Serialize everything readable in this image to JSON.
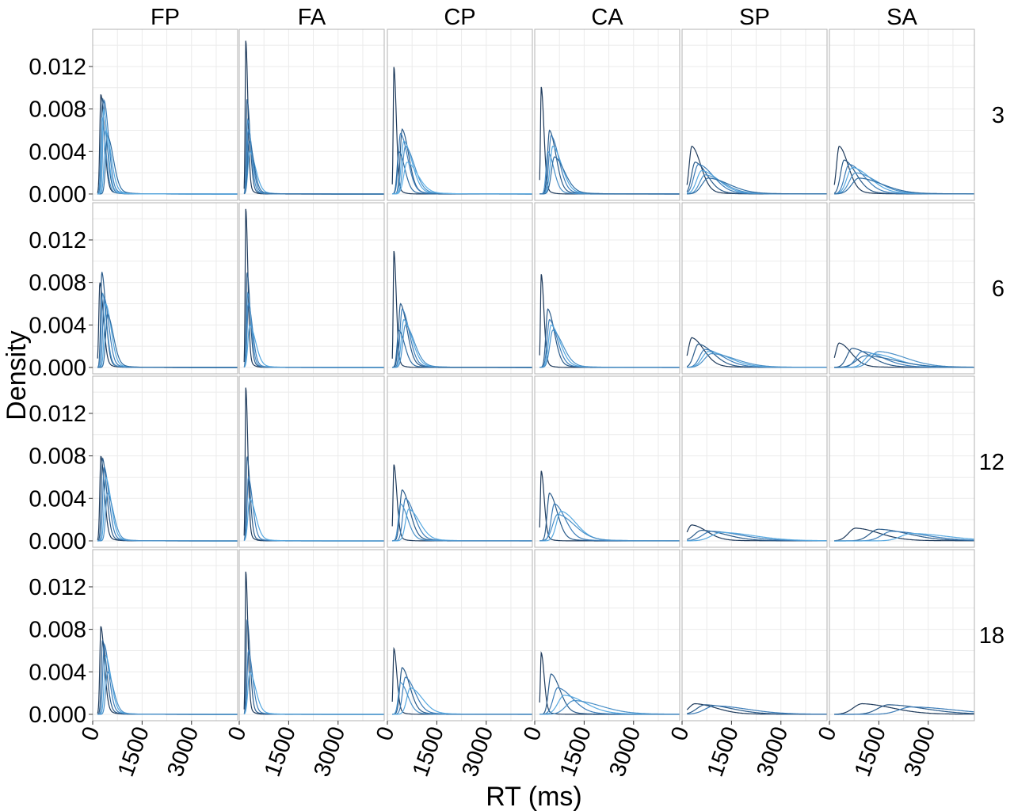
{
  "chart_data": {
    "type": "line",
    "xlabel": "RT (ms)",
    "ylabel": "Density",
    "xlim": [
      0,
      4400
    ],
    "ylim": [
      -0.0006,
      0.0155
    ],
    "x_ticks": [
      {
        "value": 0,
        "label": "0"
      },
      {
        "value": 1500,
        "label": "1500"
      },
      {
        "value": 3000,
        "label": "3000"
      }
    ],
    "y_ticks": [
      {
        "value": 0.0,
        "label": "0.000"
      },
      {
        "value": 0.004,
        "label": "0.004"
      },
      {
        "value": 0.008,
        "label": "0.008"
      },
      {
        "value": 0.012,
        "label": "0.012"
      }
    ],
    "columns": [
      "FP",
      "FA",
      "CP",
      "CA",
      "SP",
      "SA"
    ],
    "rows": [
      "3",
      "6",
      "12",
      "18"
    ],
    "grid": true,
    "colors": {
      "background": "#ffffff",
      "panel_border": "#b3b3b3",
      "grid": "#ebebeb",
      "curve_dark": "#1f3b5c",
      "curve_light": "#56a8e0"
    },
    "panels": [
      {
        "col": "FP",
        "row": "3",
        "curves": [
          {
            "peak_x": 250,
            "peak_y": 0.0094,
            "sd": 60
          },
          {
            "peak_x": 300,
            "peak_y": 0.009,
            "sd": 70
          },
          {
            "peak_x": 350,
            "peak_y": 0.0088,
            "sd": 75
          },
          {
            "peak_x": 400,
            "peak_y": 0.006,
            "sd": 90
          },
          {
            "peak_x": 280,
            "peak_y": 0.0072,
            "sd": 65
          },
          {
            "peak_x": 450,
            "peak_y": 0.0055,
            "sd": 100
          },
          {
            "peak_x": 330,
            "peak_y": 0.008,
            "sd": 70
          }
        ]
      },
      {
        "col": "FA",
        "row": "3",
        "curves": [
          {
            "peak_x": 200,
            "peak_y": 0.0145,
            "sd": 35
          },
          {
            "peak_x": 240,
            "peak_y": 0.009,
            "sd": 50
          },
          {
            "peak_x": 280,
            "peak_y": 0.006,
            "sd": 70
          },
          {
            "peak_x": 320,
            "peak_y": 0.004,
            "sd": 100
          },
          {
            "peak_x": 260,
            "peak_y": 0.007,
            "sd": 60
          },
          {
            "peak_x": 300,
            "peak_y": 0.005,
            "sd": 80
          }
        ]
      },
      {
        "col": "CP",
        "row": "3",
        "curves": [
          {
            "peak_x": 200,
            "peak_y": 0.012,
            "sd": 40
          },
          {
            "peak_x": 450,
            "peak_y": 0.0061,
            "sd": 110
          },
          {
            "peak_x": 400,
            "peak_y": 0.0057,
            "sd": 120
          },
          {
            "peak_x": 500,
            "peak_y": 0.005,
            "sd": 140
          },
          {
            "peak_x": 550,
            "peak_y": 0.0045,
            "sd": 150
          },
          {
            "peak_x": 350,
            "peak_y": 0.004,
            "sd": 100
          },
          {
            "peak_x": 600,
            "peak_y": 0.003,
            "sd": 180
          }
        ]
      },
      {
        "col": "CA",
        "row": "3",
        "curves": [
          {
            "peak_x": 200,
            "peak_y": 0.0101,
            "sd": 45
          },
          {
            "peak_x": 450,
            "peak_y": 0.006,
            "sd": 110
          },
          {
            "peak_x": 500,
            "peak_y": 0.0055,
            "sd": 130
          },
          {
            "peak_x": 550,
            "peak_y": 0.0045,
            "sd": 150
          },
          {
            "peak_x": 400,
            "peak_y": 0.004,
            "sd": 100
          },
          {
            "peak_x": 600,
            "peak_y": 0.0035,
            "sd": 170
          }
        ]
      },
      {
        "col": "SP",
        "row": "3",
        "curves": [
          {
            "peak_x": 300,
            "peak_y": 0.0045,
            "sd": 150
          },
          {
            "peak_x": 400,
            "peak_y": 0.003,
            "sd": 200
          },
          {
            "peak_x": 500,
            "peak_y": 0.0028,
            "sd": 250
          },
          {
            "peak_x": 600,
            "peak_y": 0.0022,
            "sd": 280
          },
          {
            "peak_x": 700,
            "peak_y": 0.0018,
            "sd": 300
          },
          {
            "peak_x": 800,
            "peak_y": 0.0015,
            "sd": 350
          }
        ]
      },
      {
        "col": "SA",
        "row": "3",
        "curves": [
          {
            "peak_x": 300,
            "peak_y": 0.0045,
            "sd": 150
          },
          {
            "peak_x": 450,
            "peak_y": 0.0032,
            "sd": 200
          },
          {
            "peak_x": 600,
            "peak_y": 0.0028,
            "sd": 250
          },
          {
            "peak_x": 700,
            "peak_y": 0.0025,
            "sd": 300
          },
          {
            "peak_x": 800,
            "peak_y": 0.002,
            "sd": 350
          },
          {
            "peak_x": 900,
            "peak_y": 0.0015,
            "sd": 400
          }
        ]
      },
      {
        "col": "FP",
        "row": "6",
        "curves": [
          {
            "peak_x": 220,
            "peak_y": 0.008,
            "sd": 60
          },
          {
            "peak_x": 280,
            "peak_y": 0.009,
            "sd": 65
          },
          {
            "peak_x": 350,
            "peak_y": 0.0066,
            "sd": 80
          },
          {
            "peak_x": 400,
            "peak_y": 0.006,
            "sd": 90
          },
          {
            "peak_x": 300,
            "peak_y": 0.007,
            "sd": 70
          },
          {
            "peak_x": 450,
            "peak_y": 0.005,
            "sd": 100
          }
        ]
      },
      {
        "col": "FA",
        "row": "6",
        "curves": [
          {
            "peak_x": 200,
            "peak_y": 0.015,
            "sd": 35
          },
          {
            "peak_x": 240,
            "peak_y": 0.009,
            "sd": 50
          },
          {
            "peak_x": 280,
            "peak_y": 0.006,
            "sd": 70
          },
          {
            "peak_x": 320,
            "peak_y": 0.004,
            "sd": 100
          },
          {
            "peak_x": 260,
            "peak_y": 0.007,
            "sd": 60
          }
        ]
      },
      {
        "col": "CP",
        "row": "6",
        "curves": [
          {
            "peak_x": 200,
            "peak_y": 0.011,
            "sd": 40
          },
          {
            "peak_x": 400,
            "peak_y": 0.006,
            "sd": 110
          },
          {
            "peak_x": 450,
            "peak_y": 0.0055,
            "sd": 120
          },
          {
            "peak_x": 500,
            "peak_y": 0.0045,
            "sd": 140
          },
          {
            "peak_x": 550,
            "peak_y": 0.004,
            "sd": 150
          },
          {
            "peak_x": 350,
            "peak_y": 0.0035,
            "sd": 100
          }
        ]
      },
      {
        "col": "CA",
        "row": "6",
        "curves": [
          {
            "peak_x": 200,
            "peak_y": 0.0088,
            "sd": 45
          },
          {
            "peak_x": 400,
            "peak_y": 0.0055,
            "sd": 110
          },
          {
            "peak_x": 450,
            "peak_y": 0.0045,
            "sd": 130
          },
          {
            "peak_x": 500,
            "peak_y": 0.004,
            "sd": 150
          },
          {
            "peak_x": 550,
            "peak_y": 0.0035,
            "sd": 170
          }
        ]
      },
      {
        "col": "SP",
        "row": "6",
        "curves": [
          {
            "peak_x": 300,
            "peak_y": 0.0028,
            "sd": 200
          },
          {
            "peak_x": 500,
            "peak_y": 0.0022,
            "sd": 250
          },
          {
            "peak_x": 700,
            "peak_y": 0.0017,
            "sd": 300
          },
          {
            "peak_x": 800,
            "peak_y": 0.0015,
            "sd": 350
          },
          {
            "peak_x": 900,
            "peak_y": 0.0013,
            "sd": 400
          }
        ]
      },
      {
        "col": "SA",
        "row": "6",
        "curves": [
          {
            "peak_x": 300,
            "peak_y": 0.0023,
            "sd": 200
          },
          {
            "peak_x": 700,
            "peak_y": 0.0018,
            "sd": 300
          },
          {
            "peak_x": 1000,
            "peak_y": 0.0015,
            "sd": 350
          },
          {
            "peak_x": 1300,
            "peak_y": 0.0013,
            "sd": 400
          },
          {
            "peak_x": 1500,
            "peak_y": 0.0015,
            "sd": 450
          },
          {
            "peak_x": 1100,
            "peak_y": 0.0011,
            "sd": 500
          }
        ]
      },
      {
        "col": "FP",
        "row": "12",
        "curves": [
          {
            "peak_x": 250,
            "peak_y": 0.008,
            "sd": 60
          },
          {
            "peak_x": 300,
            "peak_y": 0.0078,
            "sd": 70
          },
          {
            "peak_x": 350,
            "peak_y": 0.007,
            "sd": 80
          },
          {
            "peak_x": 400,
            "peak_y": 0.006,
            "sd": 90
          },
          {
            "peak_x": 450,
            "peak_y": 0.0045,
            "sd": 100
          }
        ]
      },
      {
        "col": "FA",
        "row": "12",
        "curves": [
          {
            "peak_x": 200,
            "peak_y": 0.0145,
            "sd": 35
          },
          {
            "peak_x": 240,
            "peak_y": 0.008,
            "sd": 50
          },
          {
            "peak_x": 280,
            "peak_y": 0.006,
            "sd": 70
          },
          {
            "peak_x": 320,
            "peak_y": 0.004,
            "sd": 100
          }
        ]
      },
      {
        "col": "CP",
        "row": "12",
        "curves": [
          {
            "peak_x": 200,
            "peak_y": 0.0072,
            "sd": 50
          },
          {
            "peak_x": 450,
            "peak_y": 0.0048,
            "sd": 130
          },
          {
            "peak_x": 550,
            "peak_y": 0.004,
            "sd": 150
          },
          {
            "peak_x": 650,
            "peak_y": 0.003,
            "sd": 180
          },
          {
            "peak_x": 400,
            "peak_y": 0.0035,
            "sd": 120
          }
        ]
      },
      {
        "col": "CA",
        "row": "12",
        "curves": [
          {
            "peak_x": 200,
            "peak_y": 0.0066,
            "sd": 50
          },
          {
            "peak_x": 450,
            "peak_y": 0.0045,
            "sd": 130
          },
          {
            "peak_x": 600,
            "peak_y": 0.0035,
            "sd": 180
          },
          {
            "peak_x": 800,
            "peak_y": 0.0028,
            "sd": 250
          },
          {
            "peak_x": 700,
            "peak_y": 0.0025,
            "sd": 280
          }
        ]
      },
      {
        "col": "SP",
        "row": "12",
        "curves": [
          {
            "peak_x": 300,
            "peak_y": 0.0015,
            "sd": 250
          },
          {
            "peak_x": 600,
            "peak_y": 0.001,
            "sd": 400
          },
          {
            "peak_x": 900,
            "peak_y": 0.0009,
            "sd": 500
          },
          {
            "peak_x": 1200,
            "peak_y": 0.0008,
            "sd": 550
          }
        ]
      },
      {
        "col": "SA",
        "row": "12",
        "curves": [
          {
            "peak_x": 800,
            "peak_y": 0.0012,
            "sd": 400
          },
          {
            "peak_x": 1500,
            "peak_y": 0.0011,
            "sd": 500
          },
          {
            "peak_x": 1900,
            "peak_y": 0.0009,
            "sd": 550
          },
          {
            "peak_x": 2500,
            "peak_y": 0.0007,
            "sd": 600
          }
        ]
      },
      {
        "col": "FP",
        "row": "18",
        "curves": [
          {
            "peak_x": 250,
            "peak_y": 0.0083,
            "sd": 60
          },
          {
            "peak_x": 300,
            "peak_y": 0.007,
            "sd": 70
          },
          {
            "peak_x": 350,
            "peak_y": 0.0066,
            "sd": 80
          },
          {
            "peak_x": 400,
            "peak_y": 0.0055,
            "sd": 90
          },
          {
            "peak_x": 450,
            "peak_y": 0.004,
            "sd": 100
          }
        ]
      },
      {
        "col": "FA",
        "row": "18",
        "curves": [
          {
            "peak_x": 200,
            "peak_y": 0.0135,
            "sd": 35
          },
          {
            "peak_x": 240,
            "peak_y": 0.009,
            "sd": 50
          },
          {
            "peak_x": 280,
            "peak_y": 0.006,
            "sd": 70
          },
          {
            "peak_x": 320,
            "peak_y": 0.004,
            "sd": 100
          }
        ]
      },
      {
        "col": "CP",
        "row": "18",
        "curves": [
          {
            "peak_x": 200,
            "peak_y": 0.0062,
            "sd": 50
          },
          {
            "peak_x": 450,
            "peak_y": 0.0044,
            "sd": 130
          },
          {
            "peak_x": 550,
            "peak_y": 0.0035,
            "sd": 160
          },
          {
            "peak_x": 700,
            "peak_y": 0.0025,
            "sd": 200
          },
          {
            "peak_x": 400,
            "peak_y": 0.003,
            "sd": 120
          }
        ]
      },
      {
        "col": "CA",
        "row": "18",
        "curves": [
          {
            "peak_x": 200,
            "peak_y": 0.0058,
            "sd": 50
          },
          {
            "peak_x": 500,
            "peak_y": 0.0038,
            "sd": 150
          },
          {
            "peak_x": 700,
            "peak_y": 0.0025,
            "sd": 250
          },
          {
            "peak_x": 900,
            "peak_y": 0.0018,
            "sd": 350
          },
          {
            "peak_x": 1200,
            "peak_y": 0.0013,
            "sd": 450
          }
        ]
      },
      {
        "col": "SP",
        "row": "18",
        "curves": [
          {
            "peak_x": 400,
            "peak_y": 0.001,
            "sd": 350
          },
          {
            "peak_x": 700,
            "peak_y": 0.0009,
            "sd": 450
          },
          {
            "peak_x": 1000,
            "peak_y": 0.0008,
            "sd": 550
          }
        ]
      },
      {
        "col": "SA",
        "row": "18",
        "curves": [
          {
            "peak_x": 1000,
            "peak_y": 0.001,
            "sd": 500
          },
          {
            "peak_x": 1800,
            "peak_y": 0.0009,
            "sd": 600
          },
          {
            "peak_x": 2500,
            "peak_y": 0.0007,
            "sd": 700
          }
        ]
      }
    ]
  }
}
